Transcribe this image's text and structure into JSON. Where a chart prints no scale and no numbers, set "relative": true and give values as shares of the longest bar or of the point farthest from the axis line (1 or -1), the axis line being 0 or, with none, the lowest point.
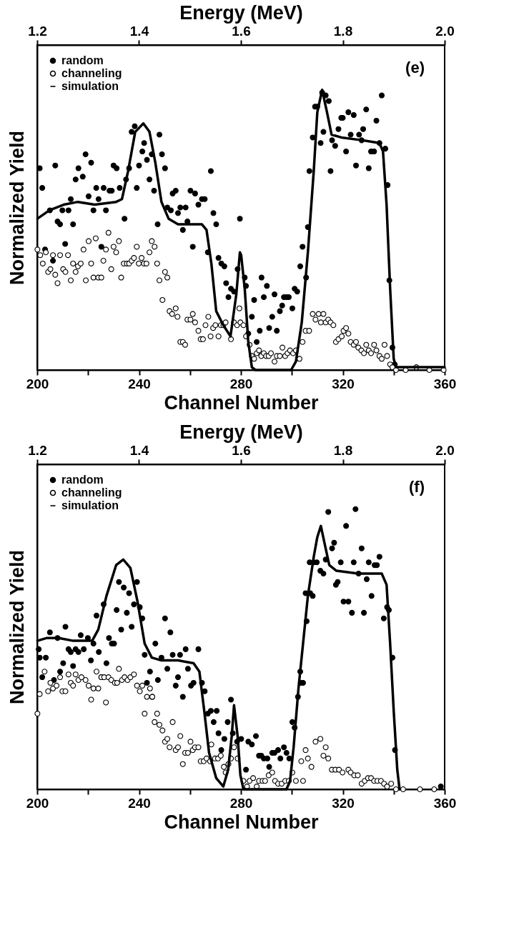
{
  "chart_data": [
    {
      "type": "scatter",
      "xlabel": "Channel Number",
      "x2label": "Energy (MeV)",
      "ylabel": "Normalized Yield",
      "xlim": [
        200,
        360
      ],
      "xticks": [
        200,
        {
          "value": 220,
          "label": null
        },
        240,
        {
          "value": 260,
          "label": null
        },
        280,
        {
          "value": 300,
          "label": null
        },
        320,
        {
          "value": 340,
          "label": null
        },
        360
      ],
      "x2lim": [
        1.2,
        2.0
      ],
      "x2ticks": [
        1.2,
        1.4,
        1.6,
        1.8,
        {
          "value": 2,
          "label": "2.0"
        }
      ],
      "relative": true,
      "legend": "top left",
      "annotations": [
        "(e)"
      ],
      "series": [
        {
          "name": "random",
          "color": "#000000",
          "marker": "circle",
          "x": [
            201.0,
            202.0,
            203.1,
            205.0,
            206.2,
            207.1,
            208.0,
            209.0,
            209.9,
            211.0,
            212.3,
            213.2,
            214.1,
            215.1,
            216.2,
            217.9,
            219.0,
            220.2,
            221.2,
            222.1,
            223.2,
            224.1,
            225.2,
            226.1,
            227.0,
            228.4,
            229.3,
            230.0,
            231.2,
            232.4,
            234.3,
            234.9,
            236.1,
            237.1,
            238.3,
            239.1,
            240.0,
            241.3,
            242.0,
            243.1,
            244.1,
            245.0,
            245.9,
            247.3,
            248.0,
            249.0,
            250.2,
            251.1,
            252.5,
            253.2,
            254.4,
            255.3,
            256.2,
            257.2,
            258.3,
            259.0,
            260.2,
            261.1,
            262.0,
            263.3,
            264.7,
            265.8,
            267.0,
            268.2,
            269.2,
            270.3,
            271.2,
            272.3,
            273.5,
            274.2,
            275.1,
            276.1,
            277.3,
            278.7,
            279.6,
            282.0,
            281.5,
            282.9,
            284.3,
            285.2,
            286.2,
            287.4,
            288.1,
            289.0,
            290.2,
            291.1,
            292.3,
            293.2,
            294.1,
            295.3,
            296.2,
            296.9,
            297.9,
            298.8,
            300.2,
            301.1,
            302.1,
            303.3,
            304.2,
            305.6,
            306.3,
            306.9,
            308.2,
            309.1,
            310.0,
            311.3,
            311.9,
            312.4,
            313.3,
            314.5,
            315.2,
            315.8,
            317.0,
            318.3,
            319.4,
            320.0,
            321.3,
            322.2,
            323.1,
            324.3,
            325.2,
            326.4,
            327.4,
            328.0,
            329.2,
            330.2,
            331.1,
            332.3,
            333.2,
            334.4,
            335.3,
            336.7,
            337.6,
            338.3,
            339.5,
            340.4
          ],
          "values": [
            0.72,
            0.65,
            0.43,
            0.57,
            0.39,
            0.73,
            0.53,
            0.52,
            0.57,
            0.45,
            0.57,
            0.61,
            0.52,
            0.68,
            0.72,
            0.69,
            0.77,
            0.62,
            0.74,
            0.57,
            0.65,
            0.61,
            0.44,
            0.65,
            0.57,
            0.64,
            0.64,
            0.73,
            0.72,
            0.65,
            0.54,
            0.68,
            0.72,
            0.85,
            0.87,
            0.65,
            0.73,
            0.78,
            0.81,
            0.75,
            0.68,
            0.77,
            0.64,
            0.52,
            0.84,
            0.77,
            0.72,
            0.58,
            0.57,
            0.63,
            0.64,
            0.56,
            0.58,
            0.5,
            0.58,
            0.53,
            0.64,
            0.44,
            0.63,
            0.59,
            0.61,
            0.61,
            0.42,
            0.71,
            0.56,
            0.52,
            0.4,
            0.38,
            0.37,
            0.31,
            0.26,
            0.29,
            0.28,
            0.36,
            0.54,
            0.3,
            0.33,
            0.13,
            0.19,
            0.25,
            0.1,
            0.14,
            0.33,
            0.26,
            0.3,
            0.15,
            0.19,
            0.27,
            0.14,
            0.21,
            0.23,
            0.26,
            0.26,
            0.26,
            0.22,
            0.29,
            0.28,
            0.37,
            0.44,
            0.33,
            0.51,
            0.71,
            0.83,
            0.94,
            0.94,
            0.81,
            0.99,
            0.85,
            0.98,
            0.96,
            0.71,
            0.82,
            0.8,
            0.86,
            0.9,
            0.9,
            0.78,
            0.92,
            0.84,
            0.91,
            0.73,
            0.84,
            0.82,
            0.86,
            0.93,
            0.72,
            0.78,
            0.78,
            0.89,
            0.81,
            0.98,
            0.79,
            0.66,
            0.32,
            0.08,
            0.02
          ]
        },
        {
          "name": "channeling",
          "color": "#ffffff",
          "marker": "circle",
          "x": [
            200.1,
            201.2,
            202.2,
            203.4,
            204.3,
            205.2,
            206.2,
            207.1,
            208.0,
            209.0,
            210.2,
            211.1,
            212.1,
            213.2,
            214.1,
            215.1,
            216.0,
            217.1,
            218.2,
            219.1,
            220.2,
            221.2,
            222.1,
            223.0,
            224.0,
            225.2,
            226.0,
            227.0,
            228.0,
            229.1,
            230.0,
            231.0,
            232.1,
            233.0,
            234.0,
            235.2,
            236.1,
            237.1,
            238.0,
            239.1,
            239.9,
            241.0,
            241.9,
            242.9,
            244.1,
            245.0,
            246.1,
            247.1,
            248.0,
            249.2,
            250.2,
            251.1,
            252.0,
            253.0,
            254.4,
            255.1,
            256.2,
            257.2,
            258.1,
            259.0,
            260.2,
            261.1,
            262.0,
            263.3,
            264.2,
            265.1,
            266.1,
            267.2,
            268.1,
            269.1,
            270.0,
            271.2,
            272.1,
            273.1,
            274.0,
            276.1,
            277.3,
            278.5,
            279.4,
            279.8,
            281.0,
            282.0,
            283.4,
            284.3,
            285.2,
            286.2,
            287.1,
            288.0,
            289.0,
            289.9,
            290.9,
            291.8,
            293.2,
            294.1,
            295.3,
            296.3,
            297.4,
            298.3,
            299.3,
            300.5,
            301.6,
            303.0,
            304.2,
            305.4,
            306.8,
            308.2,
            309.3,
            310.5,
            311.4,
            312.4,
            313.3,
            314.3,
            315.2,
            316.3,
            317.3,
            318.3,
            319.6,
            320.3,
            321.3,
            322.2,
            323.1,
            324.3,
            325.2,
            326.1,
            327.3,
            328.3,
            329.2,
            330.2,
            331.1,
            332.3,
            333.2,
            334.4,
            335.3,
            336.4,
            337.4,
            338.6,
            339.5,
            340.9,
            344.7,
            348.9,
            354.0,
            359.6
          ],
          "values": [
            0.43,
            0.41,
            0.38,
            0.42,
            0.35,
            0.36,
            0.41,
            0.34,
            0.31,
            0.41,
            0.36,
            0.35,
            0.41,
            0.32,
            0.38,
            0.35,
            0.37,
            0.38,
            0.43,
            0.32,
            0.46,
            0.38,
            0.33,
            0.47,
            0.33,
            0.33,
            0.39,
            0.43,
            0.49,
            0.36,
            0.44,
            0.42,
            0.46,
            0.33,
            0.38,
            0.38,
            0.38,
            0.39,
            0.4,
            0.44,
            0.38,
            0.4,
            0.38,
            0.38,
            0.42,
            0.46,
            0.44,
            0.38,
            0.32,
            0.25,
            0.35,
            0.33,
            0.21,
            0.2,
            0.22,
            0.19,
            0.1,
            0.1,
            0.09,
            0.18,
            0.18,
            0.2,
            0.17,
            0.14,
            0.11,
            0.11,
            0.16,
            0.19,
            0.12,
            0.15,
            0.16,
            0.12,
            0.16,
            0.16,
            0.17,
            0.11,
            0.17,
            0.16,
            0.22,
            0.17,
            0.16,
            0.12,
            0.09,
            0.05,
            0.04,
            0.06,
            0.07,
            0.05,
            0.06,
            0.05,
            0.05,
            0.06,
            0.03,
            0.05,
            0.05,
            0.08,
            0.05,
            0.06,
            0.07,
            0.06,
            0.07,
            0.04,
            0.1,
            0.14,
            0.14,
            0.2,
            0.18,
            0.2,
            0.17,
            0.2,
            0.17,
            0.18,
            0.17,
            0.16,
            0.1,
            0.11,
            0.12,
            0.14,
            0.15,
            0.13,
            0.1,
            0.09,
            0.1,
            0.08,
            0.07,
            0.06,
            0.09,
            0.07,
            0.06,
            0.09,
            0.07,
            0.05,
            0.04,
            0.09,
            0.05,
            0.02,
            0.01,
            0,
            0,
            0.01,
            0,
            0
          ]
        },
        {
          "name": "simulation",
          "type": "line",
          "color": "#000000",
          "x": [
            200.1,
            204.8,
            210.4,
            216.0,
            222.6,
            231.0,
            233.3,
            235.7,
            238.5,
            241.7,
            244.1,
            246.4,
            248.8,
            251.6,
            255.3,
            264.7,
            266.5,
            268.4,
            270.3,
            273.1,
            275.9,
            278.2,
            279.6,
            280.1,
            281.5,
            282.9,
            284.3,
            285.7,
            299.7,
            301.6,
            303.9,
            306.3,
            308.6,
            310.0,
            311.9,
            313.8,
            315.6,
            319.4,
            327.8,
            334.4,
            335.8,
            337.2,
            338.6,
            340.0,
            340.9,
            344.7,
            360.0
          ],
          "values": [
            0.54,
            0.57,
            0.59,
            0.6,
            0.59,
            0.6,
            0.61,
            0.71,
            0.85,
            0.88,
            0.85,
            0.74,
            0.6,
            0.54,
            0.52,
            0.52,
            0.5,
            0.38,
            0.21,
            0.16,
            0.12,
            0.27,
            0.42,
            0.41,
            0.29,
            0.1,
            0.01,
            0,
            0,
            0.03,
            0.17,
            0.42,
            0.71,
            0.92,
            1.0,
            0.92,
            0.84,
            0.83,
            0.82,
            0.81,
            0.78,
            0.59,
            0.29,
            0.04,
            0.01,
            0.01,
            0.01
          ]
        }
      ]
    },
    {
      "type": "scatter",
      "xlabel": "Channel Number",
      "x2label": "Energy (MeV)",
      "ylabel": "Normalized Yield",
      "xlim": [
        200,
        360
      ],
      "xticks": [
        200,
        {
          "value": 220,
          "label": null
        },
        240,
        {
          "value": 260,
          "label": null
        },
        280,
        {
          "value": 300,
          "label": null
        },
        320,
        {
          "value": 340,
          "label": null
        },
        360
      ],
      "x2lim": [
        1.2,
        2.0
      ],
      "x2ticks": [
        1.2,
        1.4,
        1.6,
        1.8,
        {
          "value": 2,
          "label": "2.0"
        }
      ],
      "relative": true,
      "legend": "top left",
      "annotations": [
        "(f)"
      ],
      "series": [
        {
          "name": "random",
          "color": "#000000",
          "marker": "circle",
          "x": [
            200.6,
            201.0,
            203.4,
            202.0,
            205.0,
            206.6,
            208.0,
            209.0,
            210.2,
            211.1,
            212.3,
            213.2,
            214.1,
            215.1,
            216.2,
            217.1,
            218.3,
            219.9,
            221.1,
            222.1,
            223.3,
            224.2,
            225.2,
            226.1,
            227.2,
            228.2,
            229.3,
            230.2,
            231.2,
            232.1,
            233.0,
            234.0,
            235.2,
            236.1,
            237.1,
            238.0,
            239.2,
            240.3,
            241.3,
            242.2,
            243.1,
            244.3,
            245.2,
            246.4,
            247.4,
            248.8,
            250.2,
            251.1,
            252.3,
            253.2,
            254.4,
            255.3,
            256.1,
            257.2,
            258.3,
            259.2,
            260.4,
            261.4,
            263.3,
            264.7,
            265.8,
            267.0,
            268.2,
            269.3,
            270.5,
            271.2,
            272.3,
            273.5,
            274.8,
            276.1,
            276.8,
            278.5,
            280.1,
            282.0,
            282.9,
            284.3,
            285.9,
            287.1,
            288.0,
            289.0,
            290.4,
            291.1,
            292.3,
            293.2,
            294.6,
            295.5,
            296.9,
            297.9,
            299.0,
            300.2,
            301.1,
            302.4,
            303.5,
            303.3,
            304.4,
            305.8,
            305.4,
            307.2,
            307.0,
            308.6,
            308.2,
            309.8,
            311.2,
            312.4,
            313.3,
            314.3,
            315.8,
            316.6,
            317.3,
            318.0,
            319.2,
            320.3,
            321.3,
            322.2,
            323.6,
            324.3,
            325.0,
            326.2,
            327.4,
            328.3,
            329.4,
            330.2,
            331.3,
            332.5,
            333.4,
            334.4,
            336.1,
            337.4,
            338.1,
            339.5,
            340.5,
            358.5
          ],
          "values": [
            0.5,
            0.47,
            0.47,
            0.4,
            0.56,
            0.39,
            0.54,
            0.42,
            0.45,
            0.58,
            0.5,
            0.49,
            0.44,
            0.5,
            0.49,
            0.55,
            0.5,
            0.54,
            0.46,
            0.52,
            0.62,
            0.49,
            0.4,
            0.66,
            0.45,
            0.54,
            0.52,
            0.52,
            0.64,
            0.74,
            0.57,
            0.72,
            0.63,
            0.7,
            0.58,
            0.66,
            0.74,
            0.65,
            0.61,
            0.48,
            0.38,
            0.42,
            0.33,
            0.52,
            0.39,
            0.47,
            0.61,
            0.43,
            0.56,
            0.48,
            0.37,
            0.4,
            0.48,
            0.33,
            0.5,
            0.43,
            0.37,
            0.38,
            0.5,
            0.38,
            0.35,
            0.27,
            0.28,
            0.24,
            0.28,
            0.2,
            0.14,
            0.18,
            0.24,
            0.32,
            0.2,
            0.17,
            0.18,
            0.07,
            0.17,
            0.16,
            0.19,
            0.12,
            0.12,
            0.11,
            0.11,
            0.08,
            0.13,
            0.13,
            0.14,
            0.11,
            0.15,
            0.13,
            0.11,
            0.24,
            0.22,
            0.33,
            0.38,
            0.42,
            0.38,
            0.6,
            0.7,
            0.7,
            0.81,
            0.81,
            0.69,
            0.81,
            0.78,
            0.77,
            0.82,
            0.99,
            0.86,
            0.88,
            0.73,
            0.74,
            0.81,
            0.67,
            0.94,
            0.67,
            0.63,
            0.81,
            1.0,
            0.77,
            0.86,
            0.63,
            0.75,
            0.81,
            0.69,
            0.8,
            0.8,
            0.83,
            0.61,
            0.65,
            0.64,
            0.47,
            0.14,
            0.01
          ]
        },
        {
          "name": "channeling",
          "color": "#ffffff",
          "marker": "circle",
          "x": [
            200.1,
            201.0,
            202.9,
            204.3,
            205.2,
            206.2,
            207.6,
            209.0,
            209.9,
            211.1,
            212.3,
            213.2,
            214.1,
            215.1,
            216.2,
            217.4,
            219.0,
            220.2,
            221.2,
            222.1,
            223.3,
            224.0,
            225.2,
            226.3,
            227.0,
            228.0,
            229.1,
            230.5,
            232.1,
            231.4,
            233.3,
            234.3,
            235.5,
            236.6,
            238.0,
            239.2,
            240.3,
            241.3,
            242.2,
            243.1,
            244.3,
            245.2,
            246.1,
            247.1,
            248.0,
            249.2,
            250.2,
            251.1,
            252.0,
            253.2,
            254.4,
            255.3,
            256.2,
            257.2,
            258.1,
            259.2,
            260.2,
            261.1,
            262.0,
            263.3,
            264.2,
            265.4,
            266.5,
            267.9,
            268.4,
            269.8,
            271.0,
            272.1,
            273.3,
            274.0,
            275.1,
            276.1,
            277.3,
            278.7,
            281.0,
            282.4,
            283.4,
            284.8,
            286.2,
            287.1,
            288.5,
            289.5,
            290.9,
            292.3,
            293.4,
            294.6,
            296.0,
            297.4,
            298.8,
            300.2,
            301.6,
            303.7,
            304.4,
            305.4,
            306.3,
            307.7,
            309.3,
            311.2,
            313.3,
            314.3,
            312.4,
            315.7,
            317.1,
            318.5,
            319.9,
            322.2,
            323.1,
            324.5,
            325.9,
            327.4,
            328.6,
            329.9,
            331.1,
            332.3,
            333.6,
            335.0,
            336.2,
            337.4,
            339.0,
            340.9,
            343.7,
            350.3,
            355.9
          ],
          "values": [
            0.27,
            0.34,
            0.42,
            0.35,
            0.38,
            0.36,
            0.37,
            0.4,
            0.35,
            0.35,
            0.41,
            0.38,
            0.37,
            0.41,
            0.39,
            0.4,
            0.39,
            0.37,
            0.32,
            0.36,
            0.42,
            0.36,
            0.4,
            0.4,
            0.31,
            0.4,
            0.39,
            0.38,
            0.43,
            0.38,
            0.39,
            0.4,
            0.39,
            0.4,
            0.41,
            0.37,
            0.35,
            0.37,
            0.27,
            0.33,
            0.36,
            0.33,
            0.24,
            0.27,
            0.23,
            0.21,
            0.17,
            0.18,
            0.15,
            0.24,
            0.14,
            0.15,
            0.19,
            0.09,
            0.13,
            0.13,
            0.17,
            0.14,
            0.15,
            0.15,
            0.1,
            0.1,
            0.11,
            0.1,
            0.16,
            0.11,
            0.11,
            0.12,
            0.08,
            0.06,
            0.09,
            0.11,
            0.15,
            0.11,
            0.03,
            0.01,
            0.03,
            0.04,
            0.01,
            0.03,
            0.03,
            0.03,
            0.05,
            0.06,
            0.03,
            0.02,
            0.02,
            0.03,
            0.03,
            0.06,
            0.03,
            0.1,
            0.03,
            0.14,
            0.11,
            0.08,
            0.17,
            0.18,
            0.15,
            0.11,
            0.12,
            0.07,
            0.07,
            0.07,
            0.06,
            0.07,
            0.06,
            0.05,
            0.05,
            0.02,
            0.03,
            0.04,
            0.04,
            0.03,
            0.03,
            0.03,
            0.02,
            0.01,
            0.02,
            0,
            0,
            0,
            0
          ]
        },
        {
          "name": "simulation",
          "type": "line",
          "color": "#000000",
          "x": [
            200.1,
            203.8,
            208.5,
            214.1,
            221.6,
            224.0,
            227.2,
            231.0,
            233.8,
            236.6,
            239.4,
            242.2,
            245.0,
            248.8,
            255.3,
            261.4,
            263.7,
            265.6,
            267.5,
            270.3,
            273.1,
            275.0,
            276.4,
            277.3,
            278.7,
            279.8,
            281.0,
            297.9,
            299.3,
            300.7,
            302.6,
            304.4,
            306.3,
            308.6,
            310.0,
            311.4,
            312.8,
            314.7,
            317.5,
            326.0,
            335.3,
            337.2,
            338.6,
            340.0,
            341.4,
            342.3
          ],
          "values": [
            0.53,
            0.54,
            0.54,
            0.53,
            0.53,
            0.57,
            0.69,
            0.8,
            0.82,
            0.79,
            0.67,
            0.52,
            0.47,
            0.46,
            0.46,
            0.45,
            0.42,
            0.28,
            0.13,
            0.04,
            0.01,
            0.07,
            0.19,
            0.3,
            0.19,
            0.05,
            0,
            0,
            0.03,
            0.15,
            0.36,
            0.52,
            0.69,
            0.83,
            0.9,
            0.94,
            0.88,
            0.8,
            0.78,
            0.77,
            0.77,
            0.73,
            0.52,
            0.28,
            0.07,
            0
          ]
        }
      ]
    }
  ]
}
